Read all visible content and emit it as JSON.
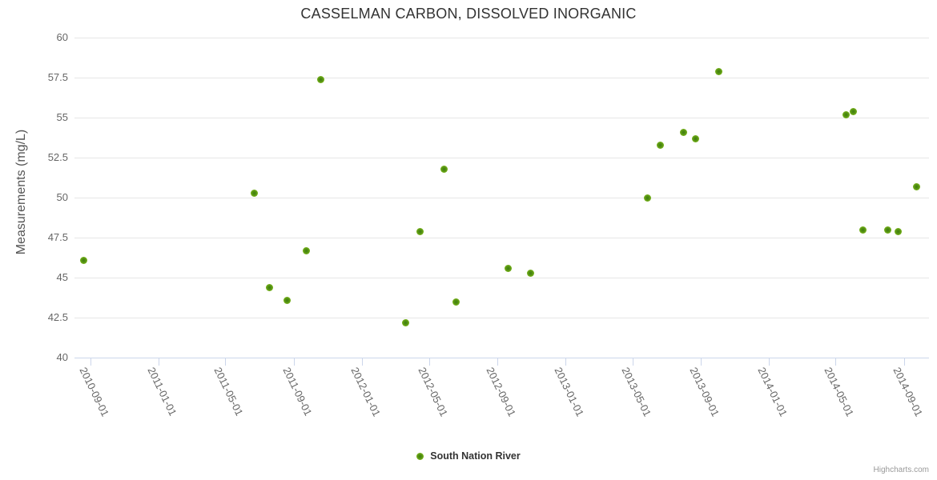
{
  "credit": "Highcharts.com",
  "colors": {
    "series_green": "#7ab41c",
    "series_green_dark": "#3e7c10",
    "gridline": "#e6e6e6",
    "axis_line": "#ccd6eb",
    "title_text": "#333333",
    "axis_label_text": "#666666",
    "credit_text": "#999999"
  },
  "chart_data": {
    "type": "scatter",
    "title": "CASSELMAN CARBON, DISSOLVED INORGANIC",
    "xlabel": "",
    "ylabel": "Measurements (mg/L)",
    "ylim": [
      40,
      60
    ],
    "y_ticks": [
      40,
      42.5,
      45,
      47.5,
      50,
      52.5,
      55,
      57.5,
      60
    ],
    "xlim": [
      "2010-08-03",
      "2014-10-16"
    ],
    "x_ticks": [
      "2010-09-01",
      "2011-01-01",
      "2011-05-01",
      "2011-09-01",
      "2012-01-01",
      "2012-05-01",
      "2012-09-01",
      "2013-01-01",
      "2013-05-01",
      "2013-09-01",
      "2014-01-01",
      "2014-05-01",
      "2014-09-01"
    ],
    "grid": true,
    "legend_position": "bottom",
    "series": [
      {
        "name": "South Nation River",
        "color": "#7ab41c",
        "data": [
          [
            "2010-08-20",
            46.1
          ],
          [
            "2011-06-22",
            50.3
          ],
          [
            "2011-07-19",
            44.4
          ],
          [
            "2011-08-20",
            43.6
          ],
          [
            "2011-09-24",
            46.7
          ],
          [
            "2011-10-20",
            57.4
          ],
          [
            "2012-03-20",
            42.2
          ],
          [
            "2012-04-15",
            47.9
          ],
          [
            "2012-05-28",
            51.8
          ],
          [
            "2012-06-18",
            43.5
          ],
          [
            "2012-09-20",
            45.6
          ],
          [
            "2012-10-30",
            45.3
          ],
          [
            "2013-05-29",
            50.0
          ],
          [
            "2013-06-20",
            53.3
          ],
          [
            "2013-08-01",
            54.1
          ],
          [
            "2013-08-22",
            53.7
          ],
          [
            "2013-10-03",
            57.9
          ],
          [
            "2014-05-20",
            55.2
          ],
          [
            "2014-06-02",
            55.4
          ],
          [
            "2014-06-20",
            48.0
          ],
          [
            "2014-08-03",
            48.0
          ],
          [
            "2014-08-22",
            47.9
          ],
          [
            "2014-09-24",
            50.7
          ]
        ]
      }
    ]
  }
}
